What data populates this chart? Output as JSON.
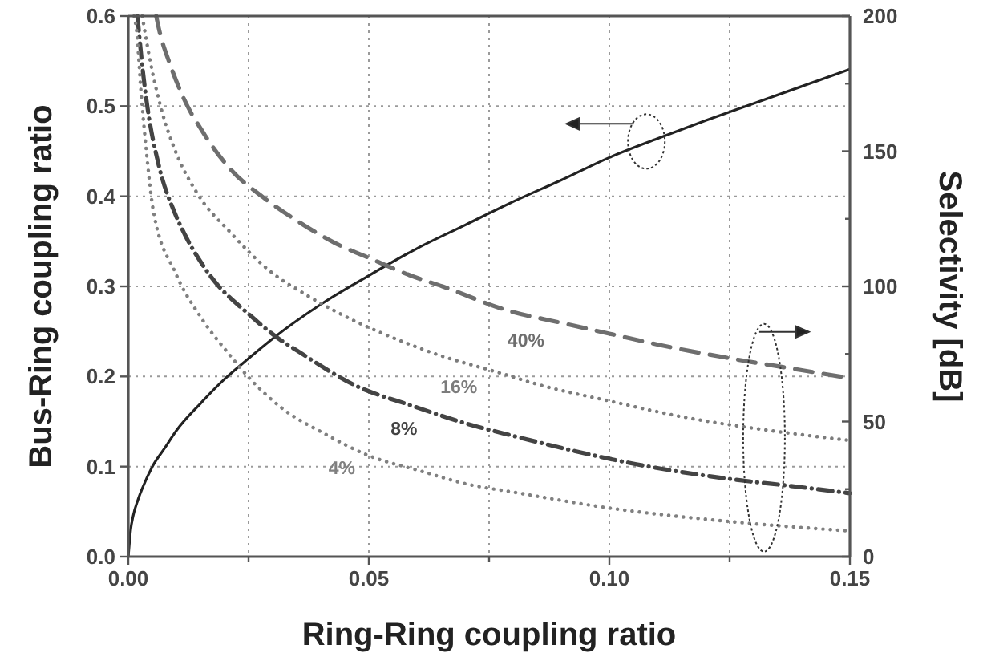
{
  "chart_data": {
    "type": "line",
    "xlabel": "Ring-Ring coupling ratio",
    "ylabel": "Bus-Ring coupling ratio",
    "y2label": "Selectivity [dB]",
    "xlim": [
      0,
      0.15
    ],
    "xticks": [
      {
        "value": 0,
        "label": "0.00"
      },
      {
        "value": 0.025,
        "label": null
      },
      {
        "value": 0.05,
        "label": "0.05"
      },
      {
        "value": 0.075,
        "label": null
      },
      {
        "value": 0.1,
        "label": "0.10"
      },
      {
        "value": 0.125,
        "label": null
      },
      {
        "value": 0.15,
        "label": "0.15"
      }
    ],
    "ylim": [
      0,
      0.6
    ],
    "yticks": [
      {
        "value": 0,
        "label": "0.0"
      },
      0.1,
      0.2,
      0.3,
      0.4,
      0.5,
      0.6
    ],
    "y2lim": [
      0,
      200
    ],
    "y2ticks": [
      0,
      {
        "value": 25,
        "label": null
      },
      50,
      {
        "value": 75,
        "label": null
      },
      100,
      {
        "value": 125,
        "label": null
      },
      150,
      {
        "value": 175,
        "label": null
      },
      200
    ],
    "grid": true,
    "series": [
      {
        "color": "#222222",
        "line_style": "solid",
        "x": [
          0,
          0.0005,
          0.001,
          0.002,
          0.003,
          0.005,
          0.0075,
          0.01,
          0.015,
          0.02,
          0.025,
          0.03,
          0.04,
          0.05,
          0.06,
          0.07,
          0.08,
          0.09,
          0.1,
          0.11,
          0.12,
          0.13,
          0.14,
          0.15
        ],
        "values": [
          0,
          0.03,
          0.045,
          0.063,
          0.077,
          0.1,
          0.12,
          0.14,
          0.17,
          0.197,
          0.22,
          0.242,
          0.28,
          0.312,
          0.342,
          0.368,
          0.394,
          0.418,
          0.443,
          0.464,
          0.484,
          0.503,
          0.522,
          0.541
        ]
      },
      {
        "name": "40%",
        "axis": "y2",
        "color": "#6e6e6e",
        "line_style": "dashed",
        "x": [
          0.0058,
          0.0064,
          0.0087,
          0.0114,
          0.0159,
          0.0214,
          0.028,
          0.0353,
          0.043,
          0.0507,
          0.0587,
          0.0653,
          0.079,
          0.09,
          0.1,
          0.11,
          0.125,
          0.14,
          0.15
        ],
        "values": [
          200,
          195,
          182,
          170,
          156,
          143,
          133,
          124,
          116,
          110,
          104,
          100,
          91,
          86.5,
          82.5,
          78.5,
          73.4,
          69,
          66
        ]
      },
      {
        "name": "16%",
        "axis": "y2",
        "color": "#7c7c7c",
        "line_style": "dotted",
        "x": [
          0.0029,
          0.0047,
          0.0068,
          0.0098,
          0.0143,
          0.0212,
          0.0292,
          0.0378,
          0.0467,
          0.055,
          0.0639,
          0.0772,
          0.0856,
          0.1,
          0.1156,
          0.1333,
          0.15
        ],
        "values": [
          200,
          182,
          166,
          150,
          134.5,
          120,
          106,
          96,
          87.5,
          81,
          75,
          68,
          63.5,
          57.6,
          51.6,
          46.7,
          43
        ]
      },
      {
        "name": "8%",
        "axis": "y2",
        "color": "#444444",
        "line_style": "dashdot",
        "x": [
          0.0019,
          0.003,
          0.004,
          0.0063,
          0.0097,
          0.0118,
          0.0166,
          0.0255,
          0.031,
          0.0353,
          0.0476,
          0.0587,
          0.0698,
          0.08,
          0.0911,
          0.1056,
          0.1244,
          0.139,
          0.15
        ],
        "values": [
          200,
          180,
          166,
          145,
          127,
          119,
          105,
          89,
          81,
          76,
          63,
          56,
          49.5,
          44.7,
          39.8,
          34.2,
          28.9,
          25.9,
          23.5
        ]
      },
      {
        "name": "4%",
        "axis": "y2",
        "color": "#808080",
        "line_style": "dotted",
        "x": [
          0.0012,
          0.0017,
          0.0026,
          0.0037,
          0.0052,
          0.0098,
          0.0153,
          0.0209,
          0.0252,
          0.0319,
          0.0408,
          0.0497,
          0.0608,
          0.0708,
          0.08,
          0.1,
          0.1244,
          0.15
        ],
        "values": [
          200,
          195,
          173,
          151,
          128,
          105,
          88,
          75,
          66,
          55,
          45.5,
          37.6,
          31.7,
          26.7,
          23.9,
          18,
          13.1,
          9.5
        ]
      }
    ]
  }
}
